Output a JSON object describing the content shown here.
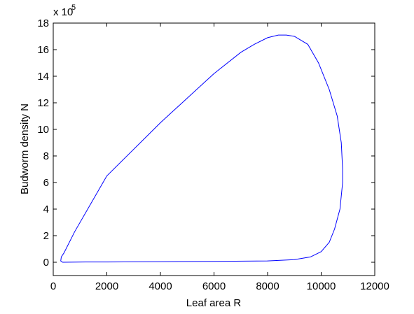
{
  "chart_data": {
    "type": "line",
    "xlabel": "Leaf area R",
    "ylabel": "Budworm density N",
    "y_multiplier": {
      "base": "x 10",
      "exponent": "5"
    },
    "xlim": [
      0,
      12000
    ],
    "xticks": [
      0,
      2000,
      4000,
      6000,
      8000,
      10000,
      12000
    ],
    "ylim": [
      -1,
      18
    ],
    "yticks": [
      0,
      2,
      4,
      6,
      8,
      10,
      12,
      14,
      16,
      18
    ],
    "series": [
      {
        "color": "#0000ff",
        "x": [
          1200,
          2000,
          4000,
          6000,
          8000,
          9000,
          9600,
          10000,
          10300,
          10500,
          10700,
          10800,
          10800,
          10750,
          10600,
          10300,
          9900,
          9500,
          9000,
          8700,
          8400,
          8000,
          7500,
          7000,
          6000,
          4000,
          2000,
          800,
          400,
          300,
          280,
          350,
          1200
        ],
        "y": [
          0.02,
          0.02,
          0.04,
          0.07,
          0.1,
          0.2,
          0.4,
          0.8,
          1.5,
          2.5,
          4,
          6,
          7,
          9,
          11,
          13,
          15,
          16.4,
          17,
          17.1,
          17.1,
          16.9,
          16.4,
          15.8,
          14.2,
          10.5,
          6.5,
          2.3,
          0.7,
          0.4,
          0.1,
          0,
          0.02
        ]
      }
    ]
  }
}
